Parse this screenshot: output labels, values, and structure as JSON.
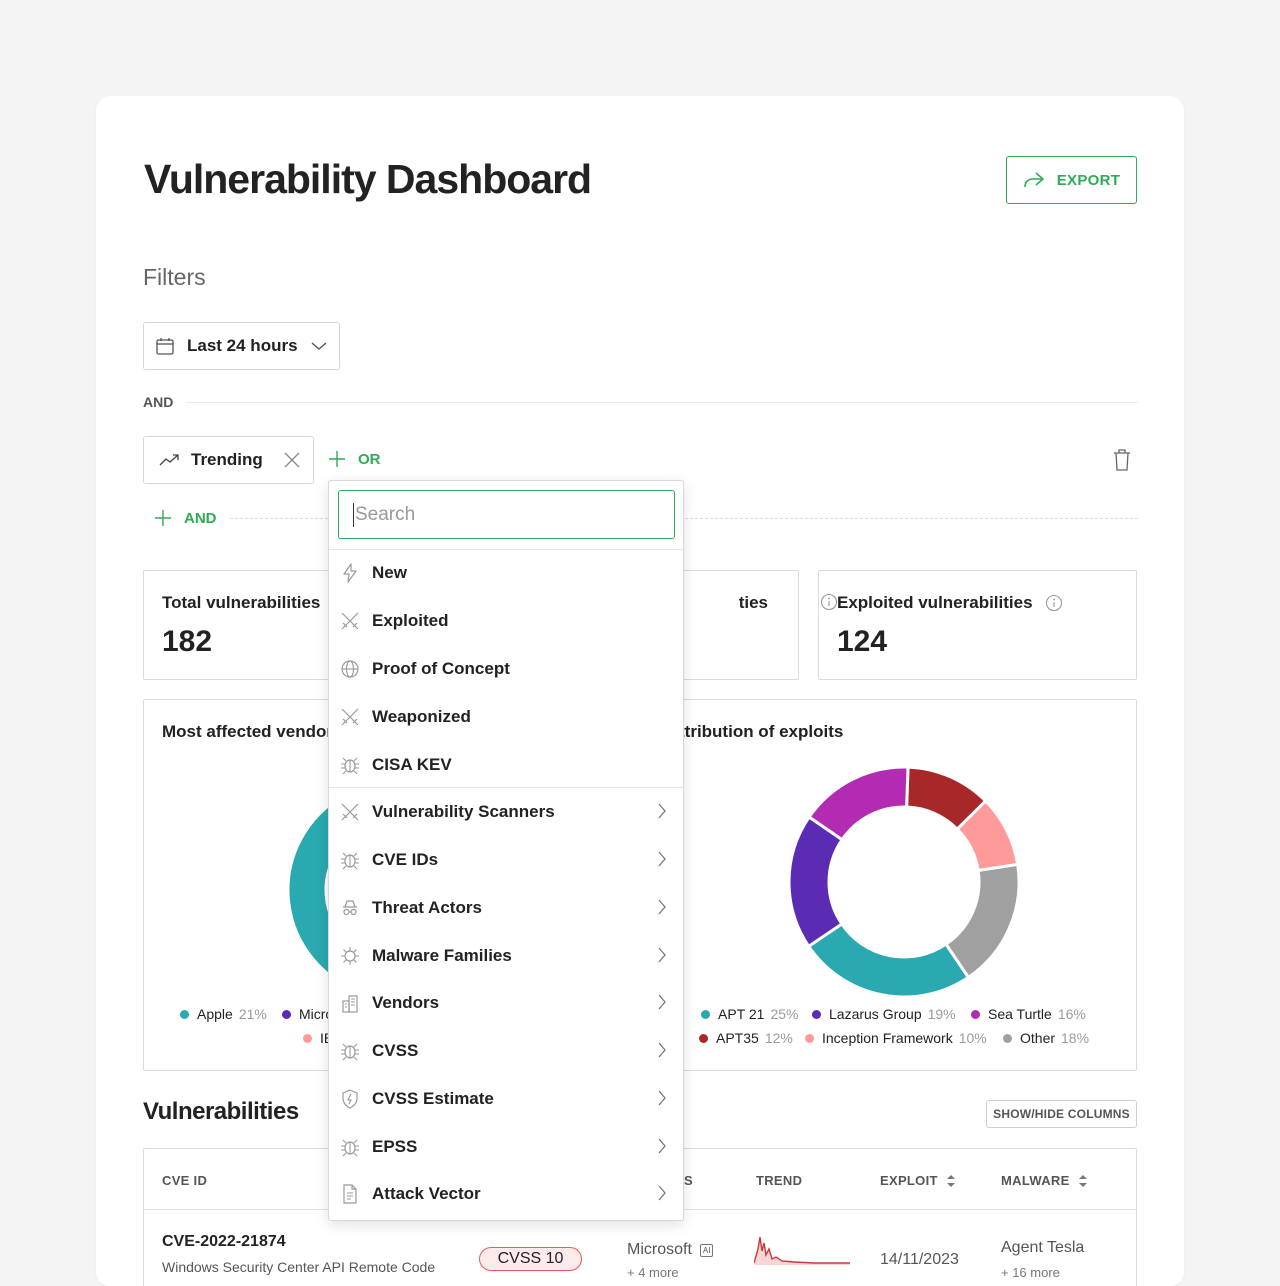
{
  "header": {
    "title": "Vulnerability Dashboard",
    "export_label": "EXPORT"
  },
  "filters": {
    "label": "Filters",
    "time_range": "Last 24 hours",
    "and_label": "AND",
    "chip": "Trending",
    "or_label": "OR",
    "add_and_label": "AND"
  },
  "stats": [
    {
      "label": "Total vulnerabilities",
      "value": "182"
    },
    {
      "label": "ties",
      "value": ""
    },
    {
      "label": "Exploited vulnerabilities",
      "value": "124"
    }
  ],
  "charts": {
    "left_title": "Most affected vendor",
    "right_title": "ttribution of exploits"
  },
  "chart_data": [
    {
      "type": "pie",
      "title": "Most affected vendor",
      "categories": [
        "Apple",
        "Micro",
        "IB"
      ],
      "values": [
        21,
        null,
        null
      ],
      "colors": [
        "#2aa9b0",
        "#5b2bb3",
        "#ff9a9a"
      ]
    },
    {
      "type": "pie",
      "title": "ttribution of exploits",
      "categories": [
        "APT 21",
        "Lazarus Group",
        "Sea Turtle",
        "APT35",
        "Inception Framework",
        "Other"
      ],
      "values": [
        25,
        19,
        16,
        12,
        10,
        18
      ],
      "colors": [
        "#2aa9b0",
        "#5b2bb3",
        "#b32bb3",
        "#a8282a",
        "#ff9a9a",
        "#a0a0a0"
      ]
    }
  ],
  "legend_left": [
    {
      "name": "Apple",
      "pct": "21%",
      "color": "#2aa9b0"
    },
    {
      "name": "Micro",
      "pct": "",
      "color": "#5b2bb3"
    },
    {
      "name": "IB",
      "pct": "",
      "color": "#ff9a9a"
    }
  ],
  "legend_right": [
    {
      "name": "APT 21",
      "pct": "25%",
      "color": "#2aa9b0"
    },
    {
      "name": "Lazarus Group",
      "pct": "19%",
      "color": "#5b2bb3"
    },
    {
      "name": "Sea Turtle",
      "pct": "16%",
      "color": "#b32bb3"
    },
    {
      "name": "APT35",
      "pct": "12%",
      "color": "#a8282a"
    },
    {
      "name": "Inception Framework",
      "pct": "10%",
      "color": "#ff9a9a"
    },
    {
      "name": "Other",
      "pct": "18%",
      "color": "#a0a0a0"
    }
  ],
  "vulnerabilities": {
    "title": "Vulnerabilities",
    "show_hide": "SHOW/HIDE COLUMNS",
    "columns": {
      "cve_id": "CVE ID",
      "s": "S",
      "trend": "TREND",
      "exploit": "EXPLOIT",
      "malware": "MALWARE"
    },
    "row": {
      "cve_id": "CVE-2022-21874",
      "desc": "Windows Security Center API Remote Code",
      "cvss": "CVSS 10",
      "vendor": "Microsoft",
      "vendor_badge": "AI",
      "vendor_more": "+ 4 more",
      "exploit_date": "14/11/2023",
      "malware": "Agent Tesla",
      "malware_more": "+ 16 more"
    }
  },
  "menu": {
    "search_placeholder": "Search",
    "items": [
      {
        "label": "New",
        "icon": "bolt-icon"
      },
      {
        "label": "Exploited",
        "icon": "swords-icon"
      },
      {
        "label": "Proof of Concept",
        "icon": "globe-icon"
      },
      {
        "label": "Weaponized",
        "icon": "swords-icon"
      },
      {
        "label": "CISA KEV",
        "icon": "bug-icon"
      },
      {
        "label": "Vulnerability Scanners",
        "icon": "swords-icon"
      },
      {
        "label": "CVE IDs",
        "icon": "bug-icon"
      },
      {
        "label": "Threat Actors",
        "icon": "spy-icon"
      },
      {
        "label": "Malware Families",
        "icon": "virus-icon"
      },
      {
        "label": "Vendors",
        "icon": "building-icon"
      },
      {
        "label": "CVSS",
        "icon": "bug-icon"
      },
      {
        "label": "CVSS Estimate",
        "icon": "shield-icon"
      },
      {
        "label": "EPSS",
        "icon": "bug-icon"
      },
      {
        "label": "Attack Vector",
        "icon": "document-icon"
      }
    ]
  }
}
